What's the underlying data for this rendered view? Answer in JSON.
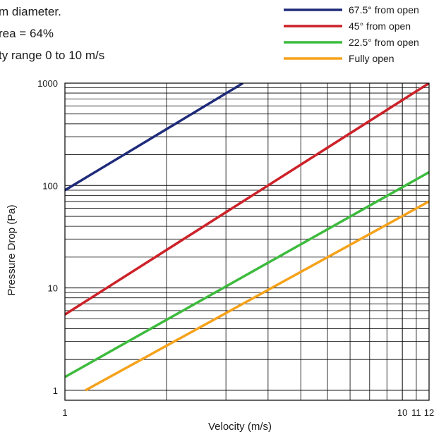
{
  "notes": [
    "m diameter.",
    "rea = 64%",
    "ty range 0 to 10 m/s"
  ],
  "chart_data": {
    "type": "line",
    "xlabel": "Velocity (m/s)",
    "ylabel": "Pressure Drop (Pa)",
    "x_scale": "log",
    "y_scale": "log",
    "xlim": [
      1,
      12
    ],
    "ylim": [
      0.8,
      1000
    ],
    "x_ticks": [
      {
        "value": 1,
        "label": "1"
      },
      {
        "value": 10,
        "label": "10"
      },
      {
        "value": 11,
        "label": "11"
      },
      {
        "value": 12,
        "label": "12"
      }
    ],
    "y_ticks": [
      {
        "value": 1,
        "label": "1"
      },
      {
        "value": 10,
        "label": "10"
      },
      {
        "value": 100,
        "label": "100"
      },
      {
        "value": 1000,
        "label": "1000"
      }
    ],
    "grid": true,
    "legend_position": "top-right",
    "series": [
      {
        "name": "67.5° from open",
        "color": "#1f2b7a",
        "x": [
          1,
          3.37
        ],
        "y": [
          90,
          1000
        ]
      },
      {
        "name": "45° from open",
        "color": "#cc2229",
        "x": [
          1,
          12
        ],
        "y": [
          5.5,
          1000
        ]
      },
      {
        "name": "22.5° from open",
        "color": "#3dbb3d",
        "x": [
          1,
          12
        ],
        "y": [
          1.35,
          135
        ]
      },
      {
        "name": "Fully open",
        "color": "#f5a21b",
        "x": [
          1.15,
          12
        ],
        "y": [
          1,
          70
        ]
      }
    ]
  }
}
